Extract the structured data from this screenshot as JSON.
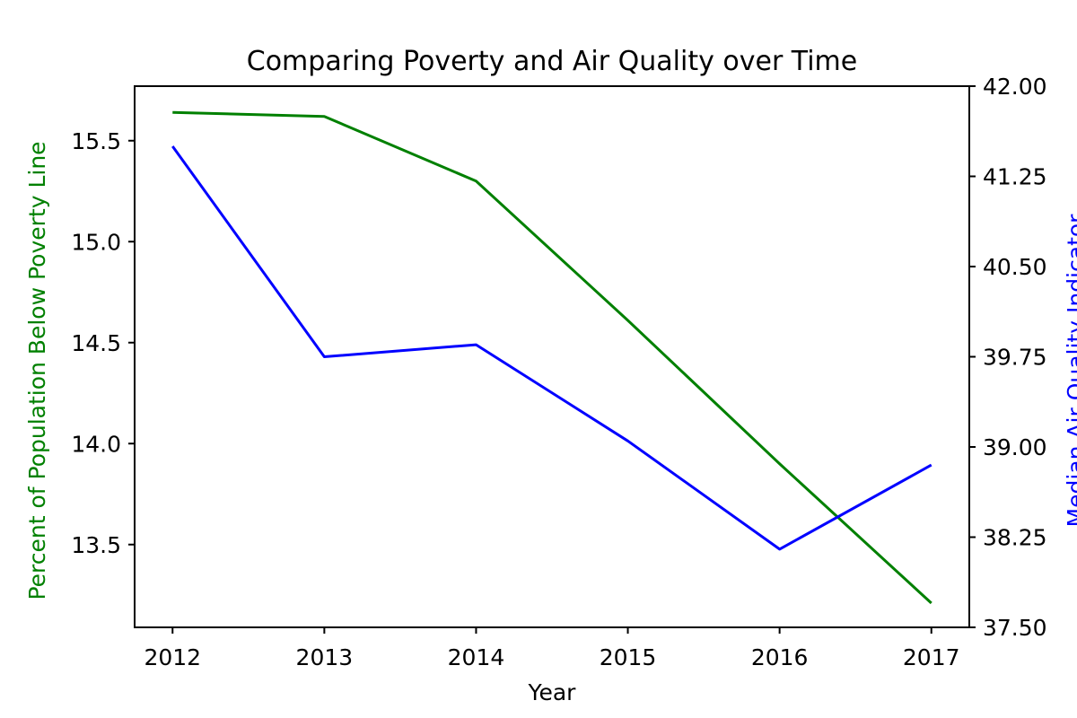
{
  "chart_data": {
    "type": "line",
    "title": "Comparing Poverty and Air Quality over Time",
    "xlabel": "Year",
    "ylabel_left": "Percent of Population Below Poverty Line",
    "ylabel_right": "Median Air Quality Indicator",
    "x": [
      2012,
      2013,
      2014,
      2015,
      2016,
      2017
    ],
    "x_ticks": [
      "2012",
      "2013",
      "2014",
      "2015",
      "2016",
      "2017"
    ],
    "xlim": [
      2011.75,
      2017.25
    ],
    "ylim_left": [
      13.09,
      15.77
    ],
    "ylim_right": [
      37.5,
      42.0
    ],
    "yticks_left": [
      "13.5",
      "14.0",
      "14.5",
      "15.0",
      "15.5"
    ],
    "yticks_left_values": [
      13.5,
      14.0,
      14.5,
      15.0,
      15.5
    ],
    "yticks_right": [
      "37.50",
      "38.25",
      "39.00",
      "39.75",
      "40.50",
      "41.25",
      "42.00"
    ],
    "yticks_right_values": [
      37.5,
      38.25,
      39.0,
      39.75,
      40.5,
      41.25,
      42.0
    ],
    "grid": false,
    "legend": "none",
    "series": [
      {
        "axis": "left",
        "color": "#008000",
        "values": [
          15.64,
          15.62,
          15.3,
          14.61,
          13.9,
          13.21
        ]
      },
      {
        "axis": "right",
        "color": "#0000ff",
        "values": [
          41.5,
          39.75,
          39.85,
          39.05,
          38.15,
          38.85
        ]
      }
    ],
    "colors": {
      "left_label": "#008000",
      "right_label": "#0000ff",
      "axis": "#000000"
    }
  }
}
